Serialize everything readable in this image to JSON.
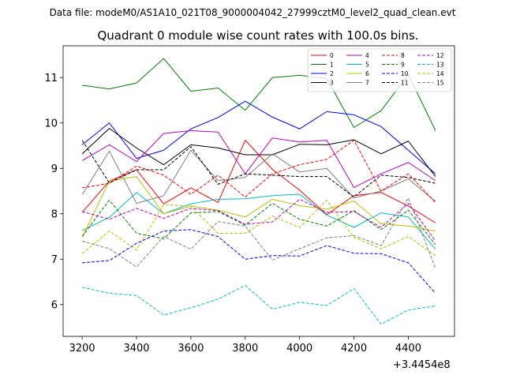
{
  "suptitle": "Data file: modeM0/AS1A10_021T08_9000004042_27999cztM0_level2_quad_clean.evt",
  "chart_data": {
    "type": "line",
    "title": "Quadrant 0 module wise count rates with 100.0s bins.",
    "xlabel": "",
    "ylabel": "",
    "x_offset_label": "+3.4454e8",
    "x": [
      3200,
      3300,
      3400,
      3500,
      3600,
      3700,
      3800,
      3900,
      4000,
      4100,
      4200,
      4300,
      4400,
      4500
    ],
    "xlim": [
      3130,
      4570
    ],
    "ylim": [
      5.3,
      11.7
    ],
    "x_ticks": [
      3200,
      3400,
      3600,
      3800,
      4000,
      4200,
      4400
    ],
    "x_tick_labels": [
      "3200",
      "3400",
      "3600",
      "3800",
      "4000",
      "4200",
      "4400"
    ],
    "y_ticks": [
      6,
      7,
      8,
      9,
      10,
      11
    ],
    "y_tick_labels": [
      "6",
      "7",
      "8",
      "9",
      "10",
      "11"
    ],
    "grid": false,
    "legend_position": "top-right",
    "legend_columns": 4,
    "series": [
      {
        "name": "0",
        "color": "#ff0000",
        "dash": "solid",
        "values": [
          8.03,
          8.72,
          8.97,
          8.22,
          8.57,
          8.25,
          9.62,
          8.98,
          8.52,
          7.98,
          8.4,
          8.47,
          8.17,
          7.8
        ]
      },
      {
        "name": "1",
        "color": "#008000",
        "dash": "solid",
        "values": [
          10.83,
          10.75,
          10.88,
          11.42,
          10.7,
          10.77,
          10.28,
          11.0,
          11.05,
          10.98,
          9.9,
          10.27,
          11.07,
          9.83
        ]
      },
      {
        "name": "2",
        "color": "#0000ff",
        "dash": "solid",
        "values": [
          9.52,
          10.0,
          9.22,
          9.4,
          9.87,
          10.12,
          10.48,
          10.13,
          9.87,
          10.25,
          10.18,
          9.92,
          9.4,
          8.88
        ]
      },
      {
        "name": "3",
        "color": "#000000",
        "dash": "solid",
        "values": [
          9.32,
          9.88,
          9.45,
          9.08,
          9.52,
          9.45,
          9.3,
          9.3,
          9.53,
          9.52,
          9.63,
          9.32,
          9.6,
          8.82
        ]
      },
      {
        "name": "4",
        "color": "#bf00bf",
        "dash": "solid",
        "values": [
          9.17,
          9.52,
          9.15,
          9.77,
          9.83,
          9.8,
          8.88,
          9.67,
          9.58,
          9.62,
          8.58,
          8.88,
          9.13,
          8.73
        ]
      },
      {
        "name": "5",
        "color": "#00bfbf",
        "dash": "solid",
        "values": [
          7.63,
          7.92,
          8.47,
          8.0,
          8.22,
          8.32,
          8.33,
          8.4,
          8.43,
          7.97,
          7.7,
          8.02,
          7.93,
          7.22
        ]
      },
      {
        "name": "6",
        "color": "#bfbf00",
        "dash": "solid",
        "values": [
          7.48,
          8.72,
          8.82,
          8.0,
          8.17,
          8.08,
          7.93,
          8.32,
          8.18,
          8.1,
          8.28,
          7.78,
          7.73,
          7.62
        ]
      },
      {
        "name": "7",
        "color": "#808080",
        "dash": "solid",
        "values": [
          8.42,
          9.38,
          8.23,
          8.4,
          9.4,
          8.73,
          8.8,
          9.32,
          8.92,
          9.0,
          8.35,
          8.5,
          8.77,
          8.27
        ]
      },
      {
        "name": "8",
        "color": "#ff0000",
        "dash": "dashed",
        "values": [
          8.57,
          8.67,
          9.05,
          8.85,
          8.43,
          8.85,
          8.37,
          8.88,
          9.08,
          9.2,
          9.62,
          8.5,
          8.88,
          8.25
        ]
      },
      {
        "name": "9",
        "color": "#008000",
        "dash": "dashed",
        "values": [
          7.5,
          8.3,
          7.57,
          7.45,
          8.02,
          8.05,
          7.75,
          8.23,
          7.88,
          7.73,
          8.07,
          7.65,
          8.08,
          7.32
        ]
      },
      {
        "name": "10",
        "color": "#0000ff",
        "dash": "dashed",
        "values": [
          6.92,
          6.97,
          7.35,
          7.62,
          7.65,
          7.5,
          7.0,
          7.08,
          7.07,
          7.3,
          7.13,
          7.12,
          6.92,
          6.25
        ]
      },
      {
        "name": "11",
        "color": "#000000",
        "dash": "dashed",
        "values": [
          9.62,
          8.68,
          8.97,
          8.97,
          9.48,
          8.65,
          8.88,
          8.85,
          8.82,
          8.82,
          8.37,
          8.85,
          8.8,
          8.67
        ]
      },
      {
        "name": "12",
        "color": "#bf00bf",
        "dash": "dashed",
        "values": [
          8.05,
          7.88,
          8.12,
          7.9,
          8.12,
          8.07,
          7.77,
          7.82,
          8.32,
          8.03,
          8.05,
          7.7,
          8.23,
          7.4
        ]
      },
      {
        "name": "13",
        "color": "#00bfbf",
        "dash": "dashed",
        "values": [
          6.38,
          6.25,
          6.2,
          5.77,
          5.93,
          6.12,
          6.42,
          5.9,
          6.05,
          5.98,
          6.35,
          5.57,
          5.88,
          5.97
        ]
      },
      {
        "name": "14",
        "color": "#bfbf00",
        "dash": "dashed",
        "values": [
          7.12,
          7.62,
          7.2,
          8.2,
          8.17,
          7.57,
          7.57,
          7.95,
          7.7,
          8.3,
          7.48,
          7.23,
          7.5,
          7.08
        ]
      },
      {
        "name": "15",
        "color": "#808080",
        "dash": "dashed",
        "values": [
          7.4,
          7.23,
          6.83,
          7.5,
          7.22,
          7.83,
          7.73,
          6.98,
          7.23,
          7.47,
          7.52,
          7.3,
          8.35,
          6.8
        ]
      }
    ]
  }
}
